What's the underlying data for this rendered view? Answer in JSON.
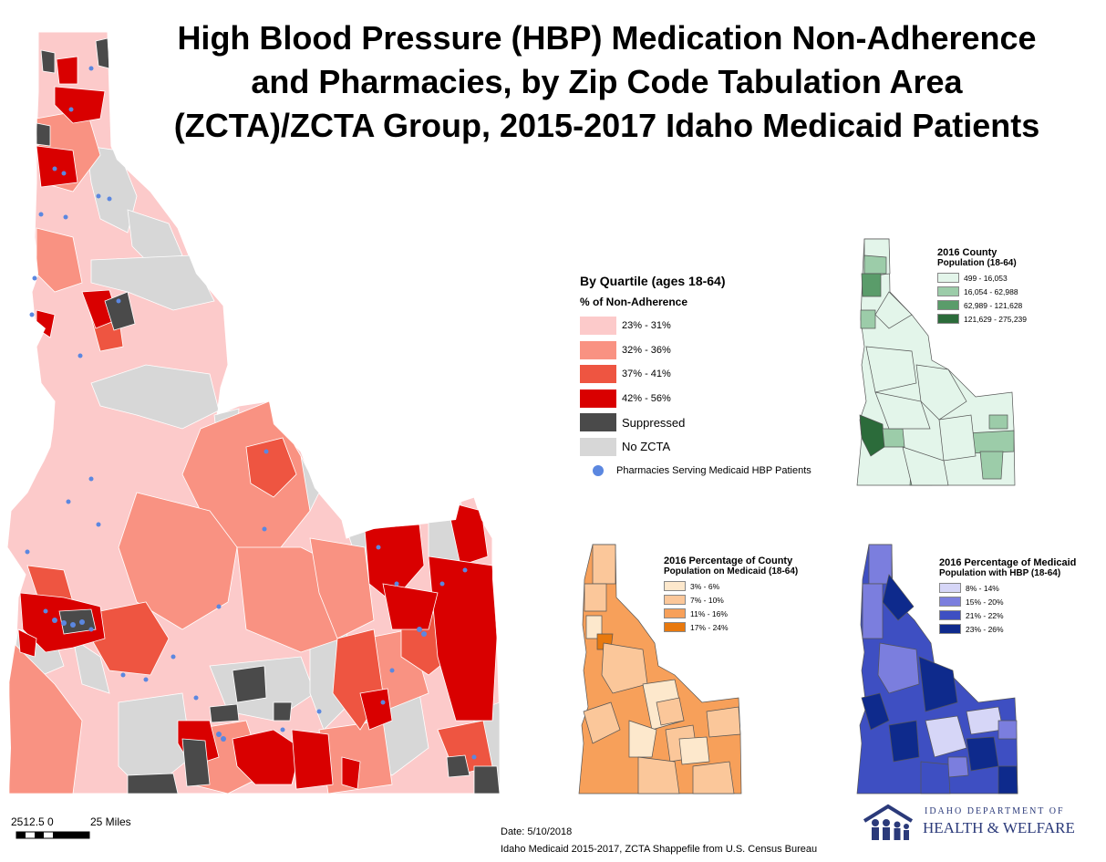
{
  "title": "High Blood Pressure (HBP) Medication Non-Adherence and Pharmacies, by Zip Code Tabulation Area (ZCTA)/ZCTA Group, 2015-2017 Idaho Medicaid Patients",
  "title_lines": [
    "High Blood Pressure (HBP) Medication Non-Adherence",
    "and Pharmacies, by Zip Code Tabulation Area",
    "(ZCTA)/ZCTA Group, 2015-2017 Idaho Medicaid Patients"
  ],
  "main_legend": {
    "title": "By Quartile (ages 18-64)",
    "subtitle": "% of Non-Adherence",
    "classes": [
      {
        "label": "23% - 31%",
        "color": "#fccaca"
      },
      {
        "label": "32% - 36%",
        "color": "#f99282"
      },
      {
        "label": "37% - 41%",
        "color": "#ee5541"
      },
      {
        "label": "42% - 56%",
        "color": "#d90000"
      },
      {
        "label": "Suppressed",
        "color": "#4a4a4a"
      },
      {
        "label": "No ZCTA",
        "color": "#d7d7d7"
      }
    ],
    "pharmacy_label": "Pharmacies Serving Medicaid HBP Patients",
    "pharmacy_color": "#5b87e0"
  },
  "county_map": {
    "title": "2016 County",
    "subtitle": "Population (18-64)",
    "classes": [
      {
        "label": "499 - 16,053",
        "color": "#e3f5ea"
      },
      {
        "label": "16,054 - 62,988",
        "color": "#9ccca9"
      },
      {
        "label": "62,989 - 121,628",
        "color": "#5a9c6a"
      },
      {
        "label": "121,629 - 275,239",
        "color": "#2b6b3a"
      }
    ]
  },
  "medicaid_map": {
    "title": "2016 Percentage of County",
    "subtitle": "Population on Medicaid (18-64)",
    "classes": [
      {
        "label": "3% - 6%",
        "color": "#fde8cc"
      },
      {
        "label": "7% - 10%",
        "color": "#fbc79a"
      },
      {
        "label": "11% - 16%",
        "color": "#f7a05a"
      },
      {
        "label": "17% - 24%",
        "color": "#e8790e"
      }
    ]
  },
  "hbp_map": {
    "title": "2016 Percentage of Medicaid",
    "subtitle": "Population with HBP (18-64)",
    "classes": [
      {
        "label": "8% - 14%",
        "color": "#d6d6f7"
      },
      {
        "label": "15% - 20%",
        "color": "#7b7ede"
      },
      {
        "label": "21% - 22%",
        "color": "#3e4fc2"
      },
      {
        "label": "23% - 26%",
        "color": "#0e2a8c"
      }
    ]
  },
  "scale_bar": {
    "ticks_label": "2512.5 0",
    "end_label": "25 Miles"
  },
  "date": "Date: 5/10/2018",
  "source": "Idaho Medicaid 2015-2017, ZCTA Shappefile from U.S. Census Bureau",
  "logo": {
    "line1": "IDAHO DEPARTMENT OF",
    "line2": "HEALTH & WELFARE",
    "color": "#2b3a7a"
  }
}
